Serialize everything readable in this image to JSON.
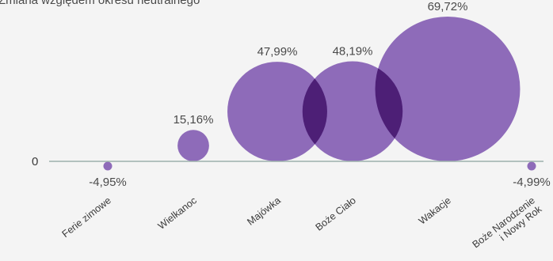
{
  "chart_data": {
    "type": "bubble",
    "subtitle": "Zmiana względem okresu neutralnego",
    "zero_label": "0",
    "categories": [
      "Ferie zimowe",
      "Wielkanoc",
      "Majówka",
      "Boże Ciało",
      "Wakacje",
      "Boże Narodzenie\ni Nowy Rok"
    ],
    "values": [
      -4.95,
      15.16,
      47.99,
      48.19,
      69.72,
      -4.99
    ],
    "value_labels": [
      "-4,95%",
      "15,16%",
      "47,99%",
      "48,19%",
      "69,72%",
      "-4,99%"
    ],
    "colors": {
      "bubble": "#8e6bb9",
      "overlap": "#4d1f76",
      "axis": "#9bb0ac",
      "text": "#4a4a4a"
    },
    "grid": false,
    "legend": "none"
  }
}
